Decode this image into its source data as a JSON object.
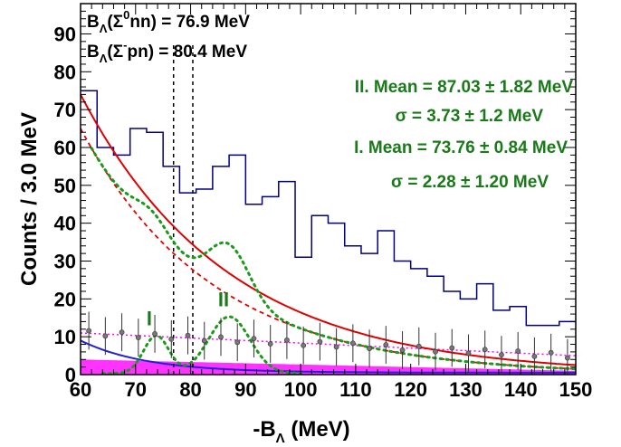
{
  "chart_data": {
    "type": "histogram",
    "xlabel_main": "-B",
    "xlabel_sub": "Λ",
    "xlabel_rest": " (MeV)",
    "ylabel": "Counts / 3.0 MeV",
    "xlim": [
      60,
      150
    ],
    "ylim": [
      0,
      98
    ],
    "x_ticks": [
      60,
      70,
      80,
      90,
      100,
      110,
      120,
      130,
      140,
      150
    ],
    "y_ticks": [
      0,
      10,
      20,
      30,
      40,
      50,
      60,
      70,
      80,
      90
    ],
    "histogram": {
      "bin_width": 3,
      "bin_edges_start": 60,
      "counts": [
        75,
        60,
        58,
        65,
        64,
        55,
        48,
        49,
        55,
        58,
        45,
        47,
        51,
        31,
        42,
        40,
        34,
        32,
        38,
        30,
        28,
        26,
        22,
        20,
        24,
        17,
        18,
        13,
        13,
        14
      ],
      "color": "#000080"
    },
    "background_fit_solid": {
      "color": "#e00000",
      "y_at_60": 74,
      "y_at_150": 2.5
    },
    "background_fit_dashed": {
      "color": "#e00000",
      "y_at_60": 65,
      "y_at_150": 1.5
    },
    "total_fit": {
      "color": "#1a9a1a"
    },
    "peaks": [
      {
        "label": "I",
        "mean": 73.76,
        "sigma": 2.28,
        "amplitude": 10,
        "label_x": 72.5,
        "label_y": 13
      },
      {
        "label": "II",
        "mean": 87.03,
        "sigma": 3.73,
        "amplitude": 15,
        "label_x": 86,
        "label_y": 18
      }
    ],
    "thresholds": [
      {
        "label": "B_Λ(Σ⁰nn)",
        "value": 76.9
      },
      {
        "label": "B_Λ(Σ⁻pn)",
        "value": 80.4
      }
    ],
    "annotations": {
      "threshold1": {
        "pre": "B",
        "sub": "Λ",
        "open": "(Σ",
        "sup": "0",
        "rest": "nn) = 76.9 MeV"
      },
      "threshold2": {
        "pre": "B",
        "sub": "Λ",
        "open": "(Σ",
        "sup": "-",
        "rest": "pn) = 80.4 MeV"
      },
      "peak2_mean": "II. Mean = 87.03 ± 1.82 MeV",
      "peak2_sigma": "σ = 3.73 ± 1.2 MeV",
      "peak1_mean": "I. Mean = 73.76 ± 0.84 MeV",
      "peak1_sigma": "σ = 2.28 ± 1.20 MeV"
    },
    "colors": {
      "histogram": "#000080",
      "fit": "#e00000",
      "total": "#1a9a1a",
      "magenta": "#ff00ff",
      "blue_curve": "#2020e0",
      "grey_points": "#777777"
    }
  }
}
